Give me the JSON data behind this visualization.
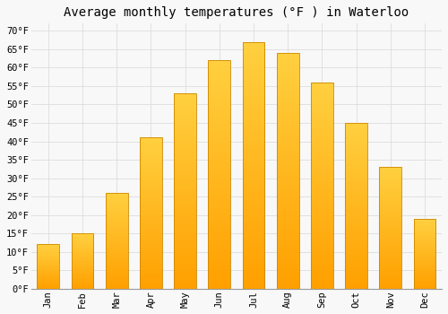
{
  "title": "Average monthly temperatures (°F ) in Waterloo",
  "months": [
    "Jan",
    "Feb",
    "Mar",
    "Apr",
    "May",
    "Jun",
    "Jul",
    "Aug",
    "Sep",
    "Oct",
    "Nov",
    "Dec"
  ],
  "values": [
    12,
    15,
    26,
    41,
    53,
    62,
    67,
    64,
    56,
    45,
    33,
    19
  ],
  "bar_color_top": "#FFD040",
  "bar_color_bottom": "#FFA000",
  "bar_edge_color": "#CC8800",
  "background_color": "#F8F8F8",
  "grid_color": "#DDDDDD",
  "ylim": [
    0,
    72
  ],
  "yticks": [
    0,
    5,
    10,
    15,
    20,
    25,
    30,
    35,
    40,
    45,
    50,
    55,
    60,
    65,
    70
  ],
  "title_fontsize": 10,
  "tick_fontsize": 7.5,
  "tick_font_family": "monospace",
  "bar_width": 0.65
}
